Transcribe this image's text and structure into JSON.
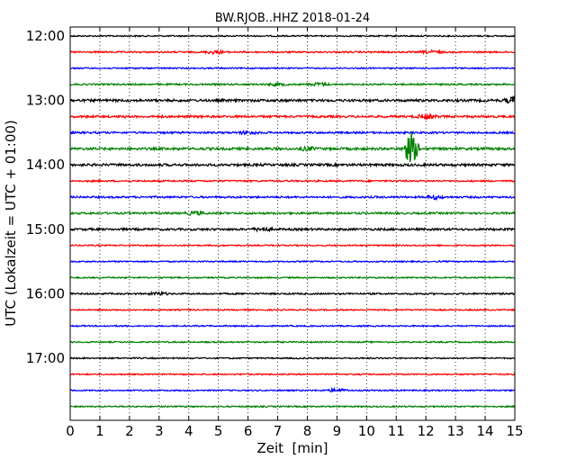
{
  "chart_data": {
    "type": "line",
    "title": "BW.RJOB..HHZ 2018-01-24",
    "xlabel": "Zeit  [min]",
    "ylabel": "UTC (Lokalzeit = UTC + 01:00)",
    "xlim": [
      0,
      15
    ],
    "x_ticks": [
      "0",
      "1",
      "2",
      "3",
      "4",
      "5",
      "6",
      "7",
      "8",
      "9",
      "10",
      "11",
      "12",
      "13",
      "14",
      "15"
    ],
    "y_tick_labels": [
      "12:00",
      "13:00",
      "14:00",
      "15:00",
      "16:00",
      "17:00"
    ],
    "grid": "vertical dotted",
    "line_colors": [
      "#000000",
      "#ff0000",
      "#0000ff",
      "#008000"
    ],
    "traces": [
      {
        "start": "12:00",
        "amplitude": 0.25
      },
      {
        "start": "12:15",
        "amplitude": 0.3,
        "bursts": [
          {
            "x": 4.9,
            "amp": 0.6
          },
          {
            "x": 12.2,
            "amp": 0.5
          }
        ]
      },
      {
        "start": "12:30",
        "amplitude": 0.25
      },
      {
        "start": "12:45",
        "amplitude": 0.3,
        "bursts": [
          {
            "x": 7.0,
            "amp": 0.4
          },
          {
            "x": 8.4,
            "amp": 0.5
          }
        ]
      },
      {
        "start": "13:00",
        "amplitude": 0.45,
        "bursts": [
          {
            "x": 15.0,
            "amp": 1.2
          }
        ]
      },
      {
        "start": "13:15",
        "amplitude": 0.4,
        "bursts": [
          {
            "x": 12.0,
            "amp": 0.8
          }
        ]
      },
      {
        "start": "13:30",
        "amplitude": 0.35,
        "bursts": [
          {
            "x": 6.0,
            "amp": 0.5
          }
        ]
      },
      {
        "start": "13:45",
        "amplitude": 0.45,
        "bursts": [
          {
            "x": 11.5,
            "amp": 6.0
          },
          {
            "x": 8.0,
            "amp": 0.5
          }
        ]
      },
      {
        "start": "14:00",
        "amplitude": 0.45
      },
      {
        "start": "14:15",
        "amplitude": 0.3
      },
      {
        "start": "14:30",
        "amplitude": 0.35,
        "bursts": [
          {
            "x": 12.3,
            "amp": 0.5
          }
        ]
      },
      {
        "start": "14:45",
        "amplitude": 0.35,
        "bursts": [
          {
            "x": 4.2,
            "amp": 0.6
          }
        ]
      },
      {
        "start": "15:00",
        "amplitude": 0.4,
        "bursts": [
          {
            "x": 6.5,
            "amp": 0.5
          }
        ]
      },
      {
        "start": "15:15",
        "amplitude": 0.25
      },
      {
        "start": "15:30",
        "amplitude": 0.25
      },
      {
        "start": "15:45",
        "amplitude": 0.25
      },
      {
        "start": "16:00",
        "amplitude": 0.3,
        "bursts": [
          {
            "x": 3.0,
            "amp": 0.5
          }
        ]
      },
      {
        "start": "16:15",
        "amplitude": 0.25
      },
      {
        "start": "16:30",
        "amplitude": 0.25
      },
      {
        "start": "16:45",
        "amplitude": 0.25
      },
      {
        "start": "17:00",
        "amplitude": 0.25
      },
      {
        "start": "17:15",
        "amplitude": 0.25
      },
      {
        "start": "17:30",
        "amplitude": 0.25,
        "bursts": [
          {
            "x": 9.0,
            "amp": 0.6
          }
        ]
      },
      {
        "start": "17:45",
        "amplitude": 0.25
      }
    ]
  }
}
